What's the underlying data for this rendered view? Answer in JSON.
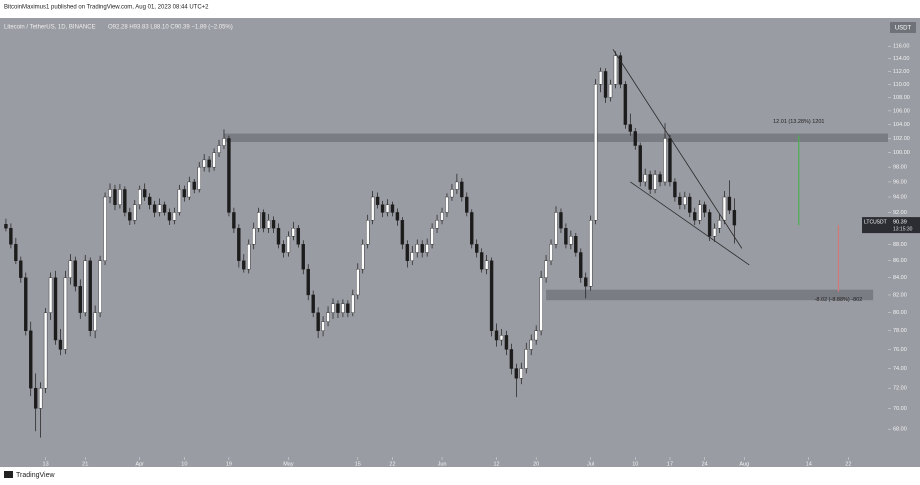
{
  "chart_data": {
    "type": "candlestick",
    "subtitle": "BitcoinMaximus1 published on TradingView.com, Aug 01, 2023 08:44 UTC+2",
    "title": "Litecoin / TetherUS, 1D, BINANCE",
    "ohlc_text": "O92.28  H93.83  L88.10  C90.39  −1.89 (−2.05%)",
    "y_unit": "USDT",
    "footer": "TradingView",
    "log_scale": true,
    "grid": false,
    "up_color": "#ffffff",
    "down_color": "#1c1c1c",
    "xlim": [
      -1.2,
      178
    ],
    "ylim": [
      65.5,
      118
    ],
    "xticks": [
      {
        "value": 8,
        "label": "13"
      },
      {
        "value": 16,
        "label": "21"
      },
      {
        "value": 27,
        "label": "Apr"
      },
      {
        "value": 36,
        "label": "10"
      },
      {
        "value": 45,
        "label": "19"
      },
      {
        "value": 57,
        "label": "May"
      },
      {
        "value": 71,
        "label": "15"
      },
      {
        "value": 78,
        "label": "22"
      },
      {
        "value": 88,
        "label": "Jun"
      },
      {
        "value": 99,
        "label": "12"
      },
      {
        "value": 107,
        "label": "20"
      },
      {
        "value": 118,
        "label": "Jul"
      },
      {
        "value": 127,
        "label": "10"
      },
      {
        "value": 134,
        "label": "17"
      },
      {
        "value": 141,
        "label": "24"
      },
      {
        "value": 149,
        "label": "Aug"
      },
      {
        "value": 162,
        "label": "14"
      },
      {
        "value": 170,
        "label": "22"
      }
    ],
    "yticks": [
      {
        "value": 68,
        "label": "68.00"
      },
      {
        "value": 70,
        "label": "70.00"
      },
      {
        "value": 72,
        "label": "72.00"
      },
      {
        "value": 74,
        "label": "74.00"
      },
      {
        "value": 76,
        "label": "76.00"
      },
      {
        "value": 78,
        "label": "78.00"
      },
      {
        "value": 80,
        "label": "80.00"
      },
      {
        "value": 82,
        "label": "82.00"
      },
      {
        "value": 84,
        "label": "84.00"
      },
      {
        "value": 86,
        "label": "86.00"
      },
      {
        "value": 88,
        "label": "88.00"
      },
      {
        "value": 92,
        "label": "92.00"
      },
      {
        "value": 94,
        "label": "94.00"
      },
      {
        "value": 96,
        "label": "96.00"
      },
      {
        "value": 98,
        "label": "98.00"
      },
      {
        "value": 100,
        "label": "100.00"
      },
      {
        "value": 102,
        "label": "102.00"
      },
      {
        "value": 104,
        "label": "104.00"
      },
      {
        "value": 106,
        "label": "106.00"
      },
      {
        "value": 108,
        "label": "108.00"
      },
      {
        "value": 110,
        "label": "110.00"
      },
      {
        "value": 112,
        "label": "112.00"
      },
      {
        "value": 114,
        "label": "114.00"
      },
      {
        "value": 116,
        "label": "116.00"
      }
    ],
    "ohlc": [
      [
        90.5,
        91.2,
        89.6,
        90
      ],
      [
        90,
        90.6,
        87.5,
        88
      ],
      [
        88,
        88.8,
        85.6,
        86
      ],
      [
        86,
        86.5,
        83.4,
        84
      ],
      [
        84,
        84.6,
        77.5,
        78
      ],
      [
        78,
        79,
        71.2,
        72
      ],
      [
        72,
        73.5,
        67.8,
        70
      ],
      [
        70,
        72.6,
        67.2,
        72
      ],
      [
        72,
        80.5,
        71.5,
        80
      ],
      [
        80,
        84.6,
        79.2,
        84
      ],
      [
        84,
        84.8,
        76.5,
        77
      ],
      [
        77,
        78.2,
        75.4,
        76
      ],
      [
        76,
        84.8,
        75.5,
        84
      ],
      [
        84,
        86.8,
        83.2,
        86
      ],
      [
        86,
        86.5,
        82.4,
        83
      ],
      [
        83,
        83.8,
        79.3,
        80
      ],
      [
        80,
        86.7,
        79.6,
        86
      ],
      [
        86,
        86.4,
        77.4,
        78
      ],
      [
        78,
        80.8,
        77.2,
        80
      ],
      [
        80,
        86.6,
        79.5,
        86
      ],
      [
        86,
        94.6,
        85.5,
        94
      ],
      [
        94,
        95.8,
        93.2,
        95
      ],
      [
        95,
        95.6,
        92.3,
        93
      ],
      [
        93,
        95.7,
        92.5,
        95
      ],
      [
        95,
        95.4,
        91.5,
        92
      ],
      [
        92,
        92.6,
        90.4,
        91
      ],
      [
        91,
        93.6,
        90.5,
        93
      ],
      [
        93,
        95.5,
        92.4,
        95
      ],
      [
        95,
        95.8,
        93.5,
        94
      ],
      [
        94,
        94.5,
        92.4,
        93
      ],
      [
        93,
        93.5,
        91.4,
        92
      ],
      [
        92,
        93.8,
        91.5,
        93
      ],
      [
        93,
        93.4,
        91.6,
        92
      ],
      [
        92,
        92.5,
        90.4,
        91
      ],
      [
        91,
        92.6,
        90.5,
        92
      ],
      [
        92,
        95.6,
        91.6,
        95
      ],
      [
        95,
        95.5,
        93.4,
        94
      ],
      [
        94,
        96.7,
        93.6,
        96
      ],
      [
        96,
        96.4,
        94.5,
        95
      ],
      [
        95,
        98.7,
        94.6,
        98
      ],
      [
        98,
        99.8,
        97.4,
        99
      ],
      [
        99,
        99.5,
        97.3,
        98
      ],
      [
        98,
        100.6,
        97.5,
        100
      ],
      [
        100,
        101.8,
        99.4,
        101
      ],
      [
        101,
        103.3,
        100.5,
        102
      ],
      [
        102,
        102.4,
        91.5,
        92
      ],
      [
        92,
        92.6,
        89.4,
        90
      ],
      [
        90,
        90.5,
        85.2,
        86
      ],
      [
        86,
        86.8,
        84.6,
        85
      ],
      [
        85,
        88.6,
        84.5,
        88
      ],
      [
        88,
        90.7,
        87.4,
        90
      ],
      [
        90,
        92.6,
        89.5,
        92
      ],
      [
        92,
        92.4,
        89.5,
        90
      ],
      [
        90,
        91.8,
        89.4,
        91
      ],
      [
        91,
        91.5,
        89.4,
        90
      ],
      [
        90,
        90.6,
        87.5,
        88
      ],
      [
        88,
        88.5,
        86.4,
        87
      ],
      [
        87,
        89.6,
        86.5,
        89
      ],
      [
        89,
        90.8,
        88.5,
        90
      ],
      [
        90,
        90.4,
        87.6,
        88
      ],
      [
        88,
        88.5,
        84.4,
        85
      ],
      [
        85,
        85.6,
        81.4,
        82
      ],
      [
        82,
        82.5,
        79.5,
        80
      ],
      [
        80,
        80.6,
        77.2,
        78
      ],
      [
        78,
        79.6,
        77.4,
        79
      ],
      [
        79,
        80.7,
        78.5,
        80
      ],
      [
        80,
        81.6,
        79.3,
        81
      ],
      [
        81,
        81.4,
        79.4,
        80
      ],
      [
        80,
        81.5,
        79.5,
        81
      ],
      [
        81,
        81.4,
        79.5,
        80
      ],
      [
        80,
        82.6,
        79.6,
        82
      ],
      [
        82,
        85.7,
        81.5,
        85
      ],
      [
        85,
        88.6,
        84.5,
        88
      ],
      [
        88,
        91.7,
        87.5,
        91
      ],
      [
        91,
        94.8,
        90.5,
        94
      ],
      [
        94,
        94.6,
        92.5,
        93
      ],
      [
        93,
        93.5,
        91.4,
        92
      ],
      [
        92,
        93.7,
        91.5,
        93
      ],
      [
        93,
        93.4,
        91.5,
        92
      ],
      [
        92,
        92.5,
        90.3,
        91
      ],
      [
        91,
        91.4,
        87.4,
        88
      ],
      [
        88,
        88.5,
        85.2,
        86
      ],
      [
        86,
        87.8,
        85.5,
        87
      ],
      [
        87,
        88.6,
        86.4,
        88
      ],
      [
        88,
        88.5,
        86.4,
        87
      ],
      [
        87,
        88.7,
        86.5,
        88
      ],
      [
        88,
        90.6,
        87.5,
        90
      ],
      [
        90,
        91.7,
        89.4,
        91
      ],
      [
        91,
        92.6,
        90.5,
        92
      ],
      [
        92,
        94.5,
        91.4,
        94
      ],
      [
        94,
        95.7,
        93.5,
        95
      ],
      [
        95,
        97.1,
        94.4,
        96
      ],
      [
        96,
        96.5,
        93.4,
        94
      ],
      [
        94,
        94.6,
        91.5,
        92
      ],
      [
        92,
        92.4,
        87.5,
        88
      ],
      [
        88,
        88.6,
        86.4,
        87
      ],
      [
        87,
        87.5,
        84.6,
        85
      ],
      [
        85,
        86.7,
        84.4,
        86
      ],
      [
        86,
        86.4,
        77.4,
        78
      ],
      [
        78,
        78.8,
        76.3,
        77
      ],
      [
        77,
        78.2,
        76.4,
        77.5
      ],
      [
        77.5,
        78,
        75.4,
        76
      ],
      [
        76,
        76.6,
        73.4,
        74
      ],
      [
        74,
        74.5,
        71.1,
        73
      ],
      [
        73,
        74.6,
        72.4,
        74
      ],
      [
        74,
        76.7,
        73.5,
        76
      ],
      [
        76,
        77.6,
        75.4,
        77
      ],
      [
        77,
        78.6,
        76.5,
        78
      ],
      [
        78,
        84.8,
        77.5,
        84
      ],
      [
        84,
        86.7,
        83.4,
        86
      ],
      [
        86,
        88.6,
        85.5,
        88
      ],
      [
        88,
        92.8,
        87.5,
        92
      ],
      [
        92,
        92.5,
        89.4,
        90
      ],
      [
        90,
        90.6,
        87.5,
        88
      ],
      [
        88,
        89.7,
        87.4,
        89
      ],
      [
        89,
        89.4,
        86.5,
        87
      ],
      [
        87,
        87.5,
        83.4,
        84
      ],
      [
        84,
        84.6,
        81.6,
        83
      ],
      [
        83,
        91.6,
        82.5,
        91
      ],
      [
        91,
        110.8,
        90.5,
        110
      ],
      [
        110,
        112.6,
        108.8,
        112
      ],
      [
        112,
        112.5,
        107.2,
        108
      ],
      [
        108,
        110.7,
        107.4,
        110
      ],
      [
        110,
        115.2,
        109.4,
        114.5
      ],
      [
        114.5,
        115,
        109.4,
        110
      ],
      [
        110,
        110.5,
        103.4,
        104
      ],
      [
        104,
        105.6,
        102.4,
        103
      ],
      [
        103,
        103.5,
        100.4,
        101
      ],
      [
        101,
        101.4,
        95.4,
        96
      ],
      [
        96,
        97.8,
        95.4,
        97
      ],
      [
        97,
        97.5,
        94.4,
        95
      ],
      [
        95,
        97.6,
        94.5,
        97
      ],
      [
        97,
        97.4,
        95.4,
        96
      ],
      [
        96,
        104.2,
        95.5,
        102
      ],
      [
        102,
        102.5,
        95.4,
        96
      ],
      [
        96,
        96.5,
        93.4,
        94
      ],
      [
        94,
        94.6,
        92.4,
        93
      ],
      [
        93,
        94.7,
        92.4,
        94
      ],
      [
        94,
        94.5,
        91.4,
        92
      ],
      [
        92,
        92.6,
        90.4,
        91
      ],
      [
        91,
        93.6,
        90.5,
        93
      ],
      [
        93,
        93.4,
        91.4,
        92
      ],
      [
        92,
        92.4,
        88.4,
        89
      ],
      [
        89,
        90.6,
        88.3,
        90
      ],
      [
        90,
        91.8,
        89.4,
        91
      ],
      [
        91,
        94.8,
        90.5,
        94
      ],
      [
        94,
        96.2,
        91.8,
        92.28
      ],
      [
        92.28,
        93.83,
        88.1,
        90.39
      ]
    ],
    "zones": [
      {
        "start": 44,
        "end": 178,
        "low": 101.5,
        "high": 102.7,
        "color": "#6f7278"
      },
      {
        "start": 109,
        "end": 175,
        "low": 81.4,
        "high": 82.6,
        "color": "#6f7278"
      }
    ],
    "trendlines": [
      {
        "points": [
          [
            122.5,
            115.5
          ],
          [
            148.5,
            87.5
          ]
        ],
        "color": "#2a2a2a"
      },
      {
        "points": [
          [
            126,
            96
          ],
          [
            150,
            85.5
          ]
        ],
        "color": "#2a2a2a"
      }
    ],
    "measures": [
      {
        "x": 160,
        "from": 90.39,
        "to": 102.4,
        "label": "12.01 (13.28%) 1201",
        "color": "#4caf50"
      },
      {
        "x": 168,
        "from": 90.39,
        "to": 82.37,
        "label": "-8.02 (-8.88%) -802",
        "color": "#d27a7a"
      }
    ],
    "last_price": {
      "symbol": "LTCUSDT",
      "value": 90.39,
      "countdown": "13:15:30"
    }
  }
}
